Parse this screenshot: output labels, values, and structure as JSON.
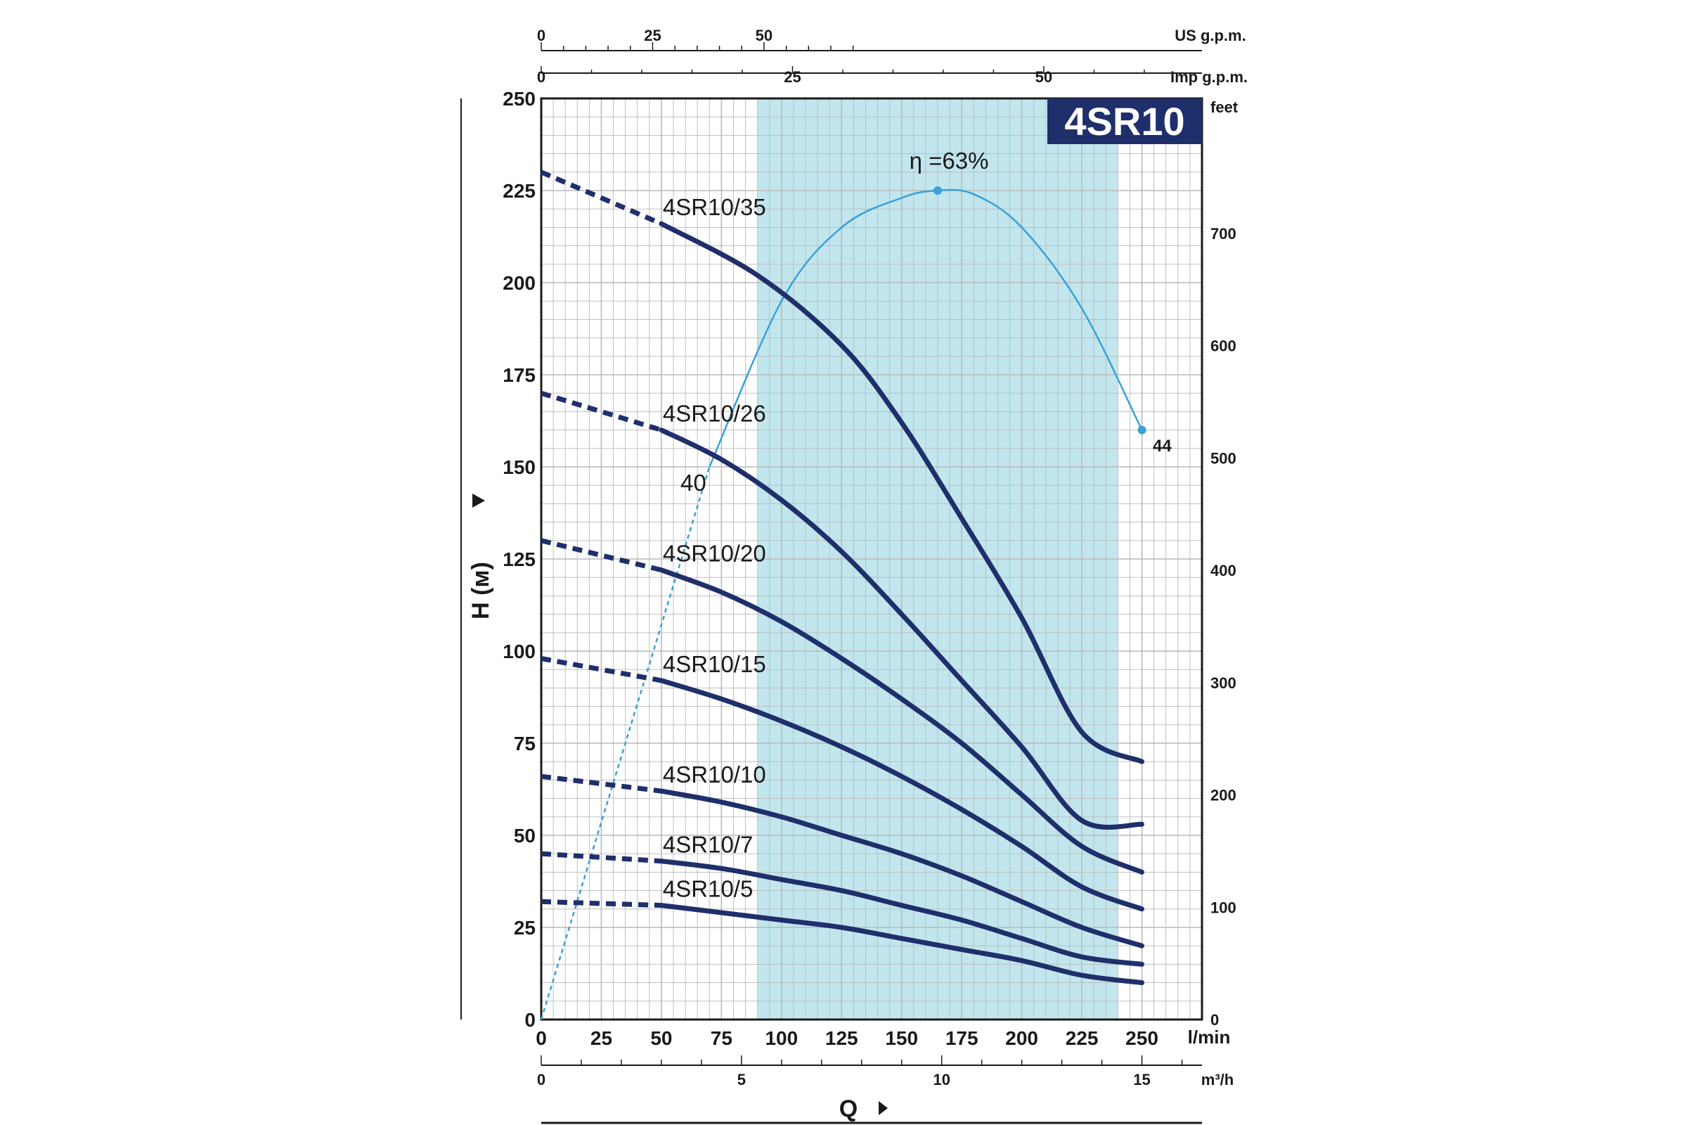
{
  "chart_data": {
    "type": "line",
    "title": "4SR10",
    "colors": {
      "curve": "#1f2f6b",
      "efficiency": "#3aa0d8",
      "band": "#c2e6ee",
      "grid": "#b9b9b9",
      "model_box": "#1f2f6b"
    },
    "xlabel": "Q",
    "ylabel": "H (м)",
    "x_unit": "l/min",
    "xlim": [
      0,
      275
    ],
    "ylim": [
      0,
      250
    ],
    "x_ticks": [
      0,
      25,
      50,
      75,
      100,
      125,
      150,
      175,
      200,
      225,
      250
    ],
    "y_ticks": [
      0,
      25,
      50,
      75,
      100,
      125,
      150,
      175,
      200,
      225,
      250
    ],
    "recommended_range": [
      90,
      240
    ],
    "secondary_axes": {
      "us_gpm": {
        "unit": "US g.p.m.",
        "ticks": [
          0,
          25,
          50
        ]
      },
      "imp_gpm": {
        "unit": "Imp g.p.m.",
        "ticks": [
          0,
          25,
          50
        ]
      },
      "m3h": {
        "unit": "m³/h",
        "ticks": [
          0,
          5,
          10,
          15
        ]
      },
      "feet": {
        "unit": "feet",
        "ticks": [
          0,
          100,
          200,
          300,
          400,
          500,
          600,
          700
        ]
      }
    },
    "series": [
      {
        "name": "4SR10/35",
        "dashed": [
          [
            0,
            230
          ],
          [
            50,
            216
          ]
        ],
        "solid": [
          [
            50,
            216
          ],
          [
            90,
            202
          ],
          [
            125,
            183
          ],
          [
            150,
            162
          ],
          [
            175,
            136
          ],
          [
            200,
            109
          ],
          [
            225,
            78
          ],
          [
            250,
            70
          ]
        ]
      },
      {
        "name": "4SR10/26",
        "dashed": [
          [
            0,
            170
          ],
          [
            50,
            160
          ]
        ],
        "solid": [
          [
            50,
            160
          ],
          [
            75,
            152
          ],
          [
            100,
            141
          ],
          [
            125,
            127
          ],
          [
            150,
            110
          ],
          [
            175,
            92
          ],
          [
            200,
            74
          ],
          [
            225,
            54
          ],
          [
            250,
            53
          ]
        ]
      },
      {
        "name": "4SR10/20",
        "dashed": [
          [
            0,
            130
          ],
          [
            50,
            122
          ]
        ],
        "solid": [
          [
            50,
            122
          ],
          [
            75,
            116
          ],
          [
            100,
            108
          ],
          [
            125,
            98
          ],
          [
            150,
            87
          ],
          [
            175,
            75
          ],
          [
            200,
            61
          ],
          [
            225,
            47
          ],
          [
            250,
            40
          ]
        ]
      },
      {
        "name": "4SR10/15",
        "dashed": [
          [
            0,
            98
          ],
          [
            50,
            92
          ]
        ],
        "solid": [
          [
            50,
            92
          ],
          [
            75,
            87
          ],
          [
            100,
            81
          ],
          [
            125,
            74
          ],
          [
            150,
            66
          ],
          [
            175,
            57
          ],
          [
            200,
            47
          ],
          [
            225,
            36
          ],
          [
            250,
            30
          ]
        ]
      },
      {
        "name": "4SR10/10",
        "dashed": [
          [
            0,
            66
          ],
          [
            50,
            62
          ]
        ],
        "solid": [
          [
            50,
            62
          ],
          [
            75,
            59
          ],
          [
            100,
            55
          ],
          [
            125,
            50
          ],
          [
            150,
            45
          ],
          [
            175,
            39
          ],
          [
            200,
            32
          ],
          [
            225,
            25
          ],
          [
            250,
            20
          ]
        ]
      },
      {
        "name": "4SR10/7",
        "dashed": [
          [
            0,
            45
          ],
          [
            50,
            43
          ]
        ],
        "solid": [
          [
            50,
            43
          ],
          [
            75,
            41
          ],
          [
            100,
            38
          ],
          [
            125,
            35
          ],
          [
            150,
            31
          ],
          [
            175,
            27
          ],
          [
            200,
            22
          ],
          [
            225,
            17
          ],
          [
            250,
            15
          ]
        ]
      },
      {
        "name": "4SR10/5",
        "dashed": [
          [
            0,
            32
          ],
          [
            50,
            31
          ]
        ],
        "solid": [
          [
            50,
            31
          ],
          [
            75,
            29
          ],
          [
            100,
            27
          ],
          [
            125,
            25
          ],
          [
            150,
            22
          ],
          [
            175,
            19
          ],
          [
            200,
            16
          ],
          [
            225,
            12
          ],
          [
            250,
            10
          ]
        ]
      }
    ],
    "efficiency": {
      "label": "η =63%",
      "label_start": "40",
      "label_end": "44",
      "dashed": [
        [
          0,
          0
        ],
        [
          70,
          150
        ]
      ],
      "solid": [
        [
          70,
          150
        ],
        [
          100,
          195
        ],
        [
          125,
          215
        ],
        [
          150,
          223
        ],
        [
          165,
          225
        ],
        [
          180,
          224
        ],
        [
          200,
          215
        ],
        [
          225,
          193
        ],
        [
          250,
          160
        ]
      ],
      "peak": [
        165,
        225
      ],
      "end": [
        250,
        160
      ]
    }
  }
}
